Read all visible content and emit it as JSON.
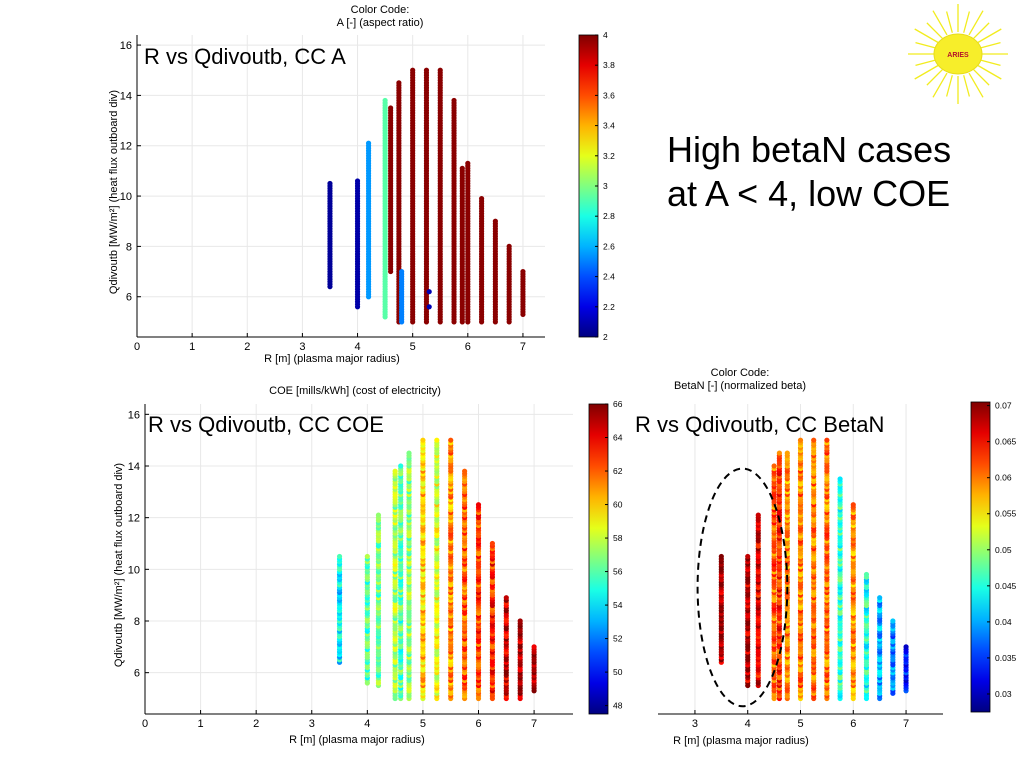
{
  "slide": {
    "headline_line1": "High betaN cases",
    "headline_line2": "at A < 4, low COE",
    "logo_text": "ARIES"
  },
  "colors": {
    "background": "#ffffff",
    "sun_rays": "#f2ec1e",
    "sun_disc": "#f7ee2a",
    "logo_text": "#b4122a"
  },
  "chart_data": [
    {
      "id": "chart-a",
      "type": "scatter",
      "overlay_label": "R vs Qdivoutb, CC A",
      "colorbar_title_line1": "Color Code:",
      "colorbar_title_line2": "A [-] (aspect ratio)",
      "xlabel": "R [m] (plasma major radius)",
      "ylabel": "Qdivoutb [MW/m²] (heat flux outboard div)",
      "xlim": [
        0,
        7.4
      ],
      "ylim": [
        4.4,
        16.4
      ],
      "xticks": [
        0,
        1,
        2,
        3,
        4,
        5,
        6,
        7
      ],
      "yticks": [
        6,
        8,
        10,
        12,
        14,
        16
      ],
      "colorbar": {
        "min": 2,
        "max": 4,
        "ticks": [
          2,
          2.2,
          2.4,
          2.6,
          2.8,
          3,
          3.2,
          3.4,
          3.6,
          3.8,
          4
        ]
      },
      "columns": [
        {
          "x": 3.5,
          "ymin": 6.4,
          "ymax": 10.5,
          "color_value": 2.05,
          "style": "dots"
        },
        {
          "x": 4.0,
          "ymin": 5.6,
          "ymax": 10.6,
          "color_value": 2.08,
          "style": "dots"
        },
        {
          "x": 4.2,
          "ymin": 6.0,
          "ymax": 12.1,
          "color_value": 2.55,
          "style": "solid"
        },
        {
          "x": 4.5,
          "ymin": 5.2,
          "ymax": 13.8,
          "color_value": 2.92,
          "style": "solid"
        },
        {
          "x": 4.6,
          "ymin": 7.0,
          "ymax": 13.5,
          "color_value": 3.98,
          "style": "solid"
        },
        {
          "x": 4.75,
          "ymin": 5.0,
          "ymax": 14.5,
          "color_value": 3.98,
          "style": "solid"
        },
        {
          "x": 4.8,
          "ymin": 5.0,
          "ymax": 7.0,
          "color_value": 2.5,
          "style": "solid"
        },
        {
          "x": 5.0,
          "ymin": 5.0,
          "ymax": 15.0,
          "color_value": 3.98,
          "style": "solid"
        },
        {
          "x": 5.25,
          "ymin": 5.0,
          "ymax": 15.0,
          "color_value": 3.98,
          "style": "solid"
        },
        {
          "x": 5.5,
          "ymin": 5.0,
          "ymax": 15.0,
          "color_value": 3.98,
          "style": "solid"
        },
        {
          "x": 5.75,
          "ymin": 5.0,
          "ymax": 13.8,
          "color_value": 3.98,
          "style": "solid"
        },
        {
          "x": 5.9,
          "ymin": 5.0,
          "ymax": 11.1,
          "color_value": 3.98,
          "style": "solid"
        },
        {
          "x": 6.0,
          "ymin": 5.0,
          "ymax": 11.3,
          "color_value": 3.98,
          "style": "solid"
        },
        {
          "x": 6.25,
          "ymin": 5.0,
          "ymax": 9.9,
          "color_value": 3.98,
          "style": "solid"
        },
        {
          "x": 6.5,
          "ymin": 5.0,
          "ymax": 9.0,
          "color_value": 3.98,
          "style": "solid"
        },
        {
          "x": 6.75,
          "ymin": 5.0,
          "ymax": 8.0,
          "color_value": 3.98,
          "style": "solid"
        },
        {
          "x": 7.0,
          "ymin": 5.3,
          "ymax": 7.0,
          "color_value": 3.98,
          "style": "dots"
        }
      ],
      "points": [
        {
          "x": 5.3,
          "y": 6.2,
          "color_value": 2.1
        },
        {
          "x": 5.3,
          "y": 5.6,
          "color_value": 2.1
        }
      ]
    },
    {
      "id": "chart-coe",
      "type": "scatter",
      "overlay_label": "R vs Qdivoutb, CC COE",
      "colorbar_title_line1": "COE [mills/kWh] (cost of electricity)",
      "xlabel": "R [m] (plasma major radius)",
      "ylabel": "Qdivoutb [MW/m²] (heat flux outboard div)",
      "xlim": [
        0,
        7.7
      ],
      "ylim": [
        4.4,
        16.4
      ],
      "xticks": [
        0,
        1,
        2,
        3,
        4,
        5,
        6,
        7
      ],
      "yticks": [
        6,
        8,
        10,
        12,
        14,
        16
      ],
      "colorbar": {
        "min": 47.5,
        "max": 66,
        "ticks": [
          48,
          50,
          52,
          54,
          56,
          58,
          60,
          62,
          64,
          66
        ]
      },
      "columns": [
        {
          "x": 3.5,
          "ymin": 6.4,
          "ymax": 10.5,
          "color_value": 54.2
        },
        {
          "x": 4.0,
          "ymin": 5.6,
          "ymax": 10.5,
          "color_value": 56.0
        },
        {
          "x": 4.2,
          "ymin": 5.5,
          "ymax": 12.1,
          "color_value": 56.5
        },
        {
          "x": 4.5,
          "ymin": 5.0,
          "ymax": 13.8,
          "color_value": 57.5
        },
        {
          "x": 4.6,
          "ymin": 5.0,
          "ymax": 14.0,
          "color_value": 56.0
        },
        {
          "x": 4.75,
          "ymin": 5.0,
          "ymax": 14.5,
          "color_value": 57.0
        },
        {
          "x": 5.0,
          "ymin": 5.0,
          "ymax": 15.0,
          "color_value": 60.0
        },
        {
          "x": 5.25,
          "ymin": 5.0,
          "ymax": 15.0,
          "color_value": 58.5
        },
        {
          "x": 5.5,
          "ymin": 5.0,
          "ymax": 15.0,
          "color_value": 61.0
        },
        {
          "x": 5.75,
          "ymin": 5.0,
          "ymax": 13.8,
          "color_value": 62.0
        },
        {
          "x": 6.0,
          "ymin": 5.0,
          "ymax": 12.5,
          "color_value": 62.5
        },
        {
          "x": 6.25,
          "ymin": 5.0,
          "ymax": 11.0,
          "color_value": 63.0
        },
        {
          "x": 6.5,
          "ymin": 5.0,
          "ymax": 8.9,
          "color_value": 64.5
        },
        {
          "x": 6.75,
          "ymin": 5.0,
          "ymax": 8.0,
          "color_value": 65.0
        },
        {
          "x": 7.0,
          "ymin": 5.3,
          "ymax": 7.0,
          "color_value": 65.5
        }
      ],
      "points": []
    },
    {
      "id": "chart-betan",
      "type": "scatter",
      "overlay_label": "R vs Qdivoutb, CC BetaN",
      "colorbar_title_line1": "Color Code:",
      "colorbar_title_line2": "BetaN [-] (normalized beta)",
      "xlabel": "R [m] (plasma major radius)",
      "xlim": [
        2.3,
        7.7
      ],
      "ylim": [
        4.4,
        16.4
      ],
      "xticks": [
        3,
        4,
        5,
        6,
        7
      ],
      "colorbar": {
        "min": 0.0275,
        "max": 0.0705,
        "ticks": [
          0.03,
          0.035,
          0.04,
          0.045,
          0.05,
          0.055,
          0.06,
          0.065,
          0.07
        ]
      },
      "columns": [
        {
          "x": 3.5,
          "ymin": 6.4,
          "ymax": 10.5,
          "color_value": 0.069
        },
        {
          "x": 4.0,
          "ymin": 5.5,
          "ymax": 10.5,
          "color_value": 0.068
        },
        {
          "x": 4.2,
          "ymin": 5.5,
          "ymax": 12.1,
          "color_value": 0.066
        },
        {
          "x": 4.5,
          "ymin": 5.0,
          "ymax": 14.0,
          "color_value": 0.061
        },
        {
          "x": 4.6,
          "ymin": 5.0,
          "ymax": 14.5,
          "color_value": 0.063
        },
        {
          "x": 4.75,
          "ymin": 5.0,
          "ymax": 14.5,
          "color_value": 0.059
        },
        {
          "x": 5.0,
          "ymin": 5.0,
          "ymax": 15.0,
          "color_value": 0.06
        },
        {
          "x": 5.25,
          "ymin": 5.0,
          "ymax": 15.0,
          "color_value": 0.06
        },
        {
          "x": 5.5,
          "ymin": 5.0,
          "ymax": 15.0,
          "color_value": 0.06
        },
        {
          "x": 5.75,
          "ymin": 5.0,
          "ymax": 13.5,
          "color_value": 0.046
        },
        {
          "x": 6.0,
          "ymin": 5.0,
          "ymax": 12.5,
          "color_value": 0.059
        },
        {
          "x": 6.25,
          "ymin": 5.0,
          "ymax": 9.8,
          "color_value": 0.045
        },
        {
          "x": 6.5,
          "ymin": 5.0,
          "ymax": 8.9,
          "color_value": 0.04
        },
        {
          "x": 6.75,
          "ymin": 5.2,
          "ymax": 8.0,
          "color_value": 0.038
        },
        {
          "x": 7.0,
          "ymin": 5.3,
          "ymax": 7.0,
          "color_value": 0.034
        }
      ],
      "points": [],
      "highlight": {
        "cx": 3.9,
        "cy": 9.3,
        "rx": 0.85,
        "ry": 4.6
      }
    }
  ]
}
